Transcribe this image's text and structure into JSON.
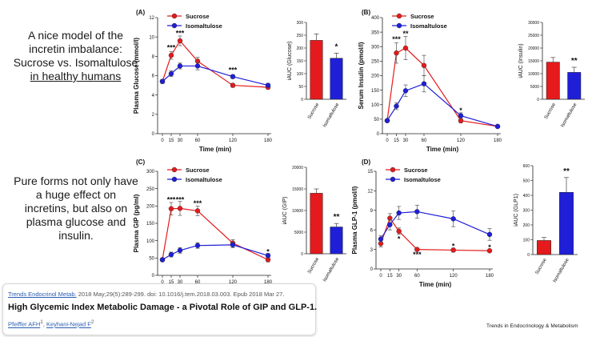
{
  "intro": {
    "line1": "A nice model of the",
    "line2": "incretin imbalance:",
    "line3": "Sucrose vs. Isomaltulose",
    "line4": "in healthy humans",
    "para2_line1": "Pure forms not only have",
    "para2_line2": "a huge effect on",
    "para2_line3": "incretins, but also on",
    "para2_line4": "plasma glucose and",
    "para2_line5": "insulin."
  },
  "citation": {
    "journal_link": "Trends Endocrinol Metab.",
    "ref_text": " 2018 May;29(5):289-299. doi: 10.1016/j.tem.2018.03.003. Epub 2018 Mar 27.",
    "title": "High Glycemic Index Metabolic Damage - a Pivotal Role of GIP and GLP-1.",
    "author1": "Pfeiffer AFH",
    "author1_sup": "1",
    "author2": "Keyhani-Nejad F",
    "author2_sup": "2",
    "sep": ", "
  },
  "brand": "Trends in Endocrinology & Metabolism",
  "colors": {
    "sucrose": "#e41a1c",
    "isomaltulose": "#1f1fd8"
  },
  "chart_data": [
    {
      "panel": "(A)",
      "type": "line",
      "ylabel": "Plasma Glucose (mmol/l)",
      "xlabel": "Time (min)",
      "ylim": [
        0,
        12
      ],
      "yticks": [
        0,
        2,
        4,
        6,
        8,
        10,
        12
      ],
      "x": [
        0,
        15,
        30,
        60,
        120,
        180
      ],
      "xticks": [
        0,
        15,
        30,
        60,
        120,
        180
      ],
      "series": [
        {
          "name": "Sucrose",
          "color": "#e41a1c",
          "values": [
            5.4,
            8.1,
            9.6,
            7.5,
            5.0,
            4.8
          ],
          "err": [
            0.2,
            0.4,
            0.5,
            0.4,
            0.2,
            0.2
          ]
        },
        {
          "name": "Isomaltulose",
          "color": "#1f1fd8",
          "values": [
            5.4,
            6.2,
            7.0,
            7.0,
            5.9,
            5.0
          ],
          "err": [
            0.2,
            0.3,
            0.3,
            0.4,
            0.2,
            0.2
          ]
        }
      ],
      "annotations": [
        {
          "x": 15,
          "y": 8.9,
          "text": "***"
        },
        {
          "x": 30,
          "y": 10.4,
          "text": "***"
        },
        {
          "x": 120,
          "y": 6.6,
          "text": "***"
        }
      ]
    },
    {
      "panel": "(A)",
      "type": "bar",
      "ylabel": "iAUC (Glucose)",
      "ylim": [
        0,
        300
      ],
      "yticks": [
        0,
        50,
        100,
        150,
        200,
        250,
        300
      ],
      "categories": [
        "Sucrose",
        "Isomaltulose"
      ],
      "values": [
        230,
        160
      ],
      "err": [
        25,
        20
      ],
      "colors": [
        "#e41a1c",
        "#1f1fd8"
      ],
      "annotation": "*"
    },
    {
      "panel": "(B)",
      "type": "line",
      "ylabel": "Serum Insulin (pmol/l)",
      "xlabel": "Time (min)",
      "ylim": [
        0,
        400
      ],
      "yticks": [
        0,
        50,
        100,
        150,
        200,
        250,
        300,
        350,
        400
      ],
      "x": [
        0,
        15,
        30,
        60,
        120,
        180
      ],
      "xticks": [
        0,
        15,
        30,
        60,
        120,
        180
      ],
      "series": [
        {
          "name": "Sucrose",
          "color": "#e41a1c",
          "values": [
            45,
            278,
            295,
            235,
            45,
            25
          ],
          "err": [
            5,
            35,
            40,
            35,
            8,
            5
          ]
        },
        {
          "name": "Isomaltulose",
          "color": "#1f1fd8",
          "values": [
            45,
            95,
            148,
            172,
            62,
            25
          ],
          "err": [
            5,
            12,
            20,
            28,
            10,
            5
          ]
        }
      ],
      "annotations": [
        {
          "x": 15,
          "y": 325,
          "text": "***"
        },
        {
          "x": 30,
          "y": 345,
          "text": "**"
        },
        {
          "x": 120,
          "y": 80,
          "text": "*"
        }
      ]
    },
    {
      "panel": "(B)",
      "type": "bar",
      "ylabel": "iAUC (Insulin)",
      "ylim": [
        0,
        30000
      ],
      "yticks": [
        0,
        5000,
        10000,
        15000,
        20000,
        25000,
        30000
      ],
      "categories": [
        "Sucrose",
        "Isomaltulose"
      ],
      "values": [
        14500,
        10500
      ],
      "err": [
        1800,
        2000
      ],
      "colors": [
        "#e41a1c",
        "#1f1fd8"
      ],
      "annotation": "**"
    },
    {
      "panel": "(C)",
      "type": "line",
      "ylabel": "Plasma GIP (pg/ml)",
      "xlabel": "Time (min)",
      "ylim": [
        0,
        300
      ],
      "yticks": [
        0,
        50,
        100,
        150,
        200,
        250,
        300
      ],
      "x": [
        0,
        15,
        30,
        60,
        120,
        180
      ],
      "xticks": [
        0,
        15,
        30,
        60,
        120,
        180
      ],
      "series": [
        {
          "name": "Sucrose",
          "color": "#e41a1c",
          "values": [
            45,
            192,
            193,
            186,
            93,
            45
          ],
          "err": [
            5,
            18,
            20,
            14,
            10,
            6
          ]
        },
        {
          "name": "Isomaltulose",
          "color": "#1f1fd8",
          "values": [
            45,
            60,
            72,
            86,
            88,
            57
          ],
          "err": [
            5,
            7,
            8,
            8,
            8,
            6
          ]
        }
      ],
      "annotations": [
        {
          "x": 15,
          "y": 218,
          "text": "***"
        },
        {
          "x": 30,
          "y": 218,
          "text": "***"
        },
        {
          "x": 60,
          "y": 208,
          "text": "***"
        },
        {
          "x": 180,
          "y": 68,
          "text": "*"
        }
      ]
    },
    {
      "panel": "(C)",
      "type": "bar",
      "ylabel": "iAUC (GIP)",
      "ylim": [
        0,
        20000
      ],
      "yticks": [
        0,
        5000,
        10000,
        15000,
        20000
      ],
      "categories": [
        "Sucrose",
        "Isomaltulose"
      ],
      "values": [
        14000,
        6200
      ],
      "err": [
        1000,
        800
      ],
      "colors": [
        "#e41a1c",
        "#1f1fd8"
      ],
      "annotation": "**"
    },
    {
      "panel": "(D)",
      "type": "line",
      "ylabel": "Plasma GLP-1 (pmol/l)",
      "xlabel": "Time (min)",
      "ylim": [
        0,
        15
      ],
      "yticks": [
        0,
        3,
        6,
        9,
        12,
        15
      ],
      "x": [
        0,
        15,
        30,
        60,
        120,
        180
      ],
      "xticks": [
        0,
        15,
        30,
        60,
        120,
        180
      ],
      "series": [
        {
          "name": "Sucrose",
          "color": "#e41a1c",
          "values": [
            3.9,
            7.8,
            5.8,
            3.0,
            2.9,
            2.8
          ],
          "err": [
            0.5,
            0.7,
            0.5,
            0.2,
            0.3,
            0.2
          ]
        },
        {
          "name": "Isomaltulose",
          "color": "#1f1fd8",
          "values": [
            4.6,
            6.8,
            8.6,
            8.8,
            7.7,
            5.3
          ],
          "err": [
            0.5,
            0.8,
            1.0,
            1.0,
            1.2,
            0.9
          ]
        }
      ],
      "annotations": [
        {
          "x": 30,
          "y": 4.6,
          "text": "*"
        },
        {
          "x": 60,
          "y": 2.2,
          "text": "***"
        },
        {
          "x": 120,
          "y": 3.5,
          "text": "*"
        },
        {
          "x": 180,
          "y": 3.3,
          "text": "*"
        }
      ]
    },
    {
      "panel": "(D)",
      "type": "bar",
      "ylabel": "iAUC (GLP1)",
      "ylim": [
        0,
        600
      ],
      "yticks": [
        0,
        100,
        200,
        300,
        400,
        500,
        600
      ],
      "categories": [
        "Sucrose",
        "Isomaltulose"
      ],
      "values": [
        95,
        420
      ],
      "err": [
        20,
        100
      ],
      "colors": [
        "#e41a1c",
        "#1f1fd8"
      ],
      "annotation": "**"
    }
  ]
}
